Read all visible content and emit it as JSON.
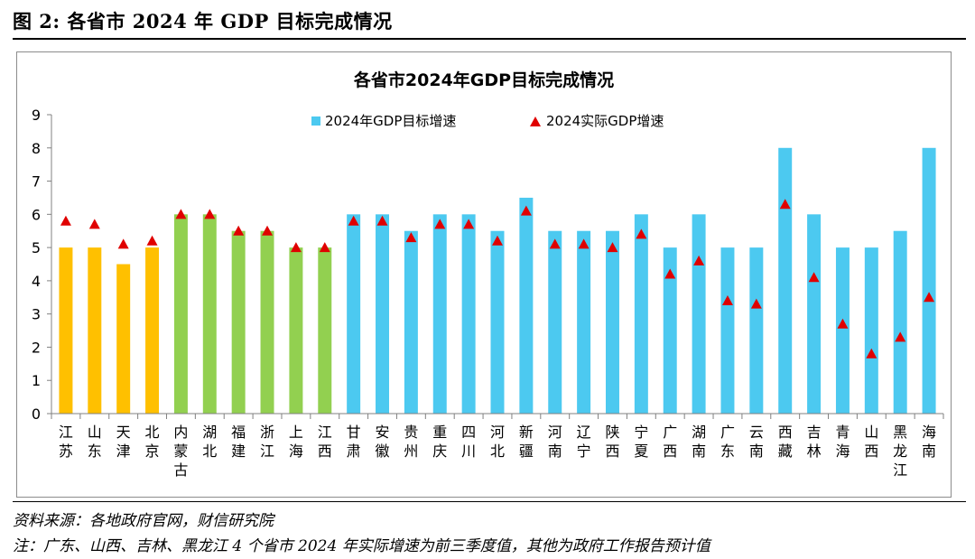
{
  "figure_label": "图 2:  各省市 2024 年 GDP 目标完成情况",
  "source_note": "资料来源：各地政府官网，财信研究院",
  "footnote": "注：广东、山西、吉林、黑龙江 4 个省市 2024 年实际增速为前三季度值，其他为政府工作报告预计值",
  "colors": {
    "bar_yellow": "#FFC000",
    "bar_green": "#92D050",
    "bar_blue": "#4CC9F0",
    "marker_red": "#E00000"
  },
  "chart_data": {
    "type": "bar",
    "title": "各省市2024年GDP目标完成情况",
    "xlabel": "",
    "ylabel": "",
    "ylim": [
      0,
      9
    ],
    "yticks": [
      0,
      1,
      2,
      3,
      4,
      5,
      6,
      7,
      8,
      9
    ],
    "grid": false,
    "legend_position": "top",
    "categories": [
      "江苏",
      "山东",
      "天津",
      "北京",
      "内蒙古",
      "湖北",
      "福建",
      "浙江",
      "上海",
      "江西",
      "甘肃",
      "安徽",
      "贵州",
      "重庆",
      "四川",
      "河北",
      "新疆",
      "河南",
      "辽宁",
      "陕西",
      "宁夏",
      "广西",
      "湖南",
      "广东",
      "云南",
      "西藏",
      "吉林",
      "青海",
      "山西",
      "黑龙江",
      "海南"
    ],
    "bar_color_groups": [
      "yellow",
      "yellow",
      "yellow",
      "yellow",
      "green",
      "green",
      "green",
      "green",
      "green",
      "green",
      "blue",
      "blue",
      "blue",
      "blue",
      "blue",
      "blue",
      "blue",
      "blue",
      "blue",
      "blue",
      "blue",
      "blue",
      "blue",
      "blue",
      "blue",
      "blue",
      "blue",
      "blue",
      "blue",
      "blue",
      "blue"
    ],
    "series": [
      {
        "name": "2024年GDP目标增速",
        "kind": "bar",
        "values": [
          5,
          5,
          4.5,
          5,
          6,
          6,
          5.5,
          5.5,
          5,
          5,
          6,
          6,
          5.5,
          6,
          6,
          5.5,
          6.5,
          5.5,
          5.5,
          5.5,
          6,
          5,
          6,
          5,
          5,
          8,
          6,
          5,
          5,
          5.5,
          8
        ]
      },
      {
        "name": "2024实际GDP增速",
        "kind": "marker",
        "values": [
          5.8,
          5.7,
          5.1,
          5.2,
          6.0,
          6.0,
          5.5,
          5.5,
          5.0,
          5.0,
          5.8,
          5.8,
          5.3,
          5.7,
          5.7,
          5.2,
          6.1,
          5.1,
          5.1,
          5.0,
          5.4,
          4.2,
          4.6,
          3.4,
          3.3,
          6.3,
          4.1,
          2.7,
          1.8,
          2.3,
          3.5
        ]
      }
    ]
  }
}
